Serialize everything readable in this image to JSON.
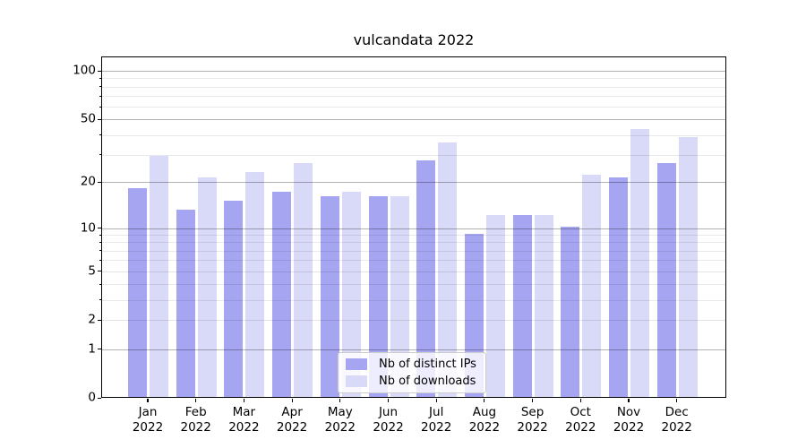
{
  "figure": {
    "background": "#ffffff"
  },
  "chart_data": {
    "type": "bar",
    "title": "vulcandata 2022",
    "categories": [
      "Jan",
      "Feb",
      "Mar",
      "Apr",
      "May",
      "Jun",
      "Jul",
      "Aug",
      "Sep",
      "Oct",
      "Nov",
      "Dec"
    ],
    "year_label": "2022",
    "series": [
      {
        "name": "Nb of distinct IPs",
        "color": "#a5a5f2",
        "values": [
          18,
          13,
          15,
          17,
          16,
          16,
          27,
          9,
          12,
          10,
          21,
          26
        ]
      },
      {
        "name": "Nb of downloads",
        "color": "#d9d9f8",
        "values": [
          29,
          21,
          23,
          26,
          17,
          16,
          35,
          12,
          12,
          22,
          43,
          38
        ]
      }
    ],
    "yscale": "log1p",
    "ylim": [
      0,
      123
    ],
    "yticks": [
      0,
      1,
      2,
      5,
      10,
      20,
      50,
      100
    ],
    "ytick_labels": [
      "0",
      "1",
      "2",
      "5",
      "10",
      "20",
      "50",
      "100"
    ],
    "major_grid_ticks": [
      1,
      10,
      20,
      50,
      100
    ],
    "labeled_light_ticks": [
      2,
      5
    ],
    "minor_yticks": [
      3,
      4,
      6,
      7,
      8,
      9,
      30,
      40,
      60,
      70,
      80,
      90
    ],
    "grid": true,
    "legend_position": "lower center",
    "colors": {
      "major_grid": "rgba(0,0,0,0.30)",
      "minor_grid": "rgba(0,0,0,0.085)",
      "spine": "#000000"
    }
  }
}
